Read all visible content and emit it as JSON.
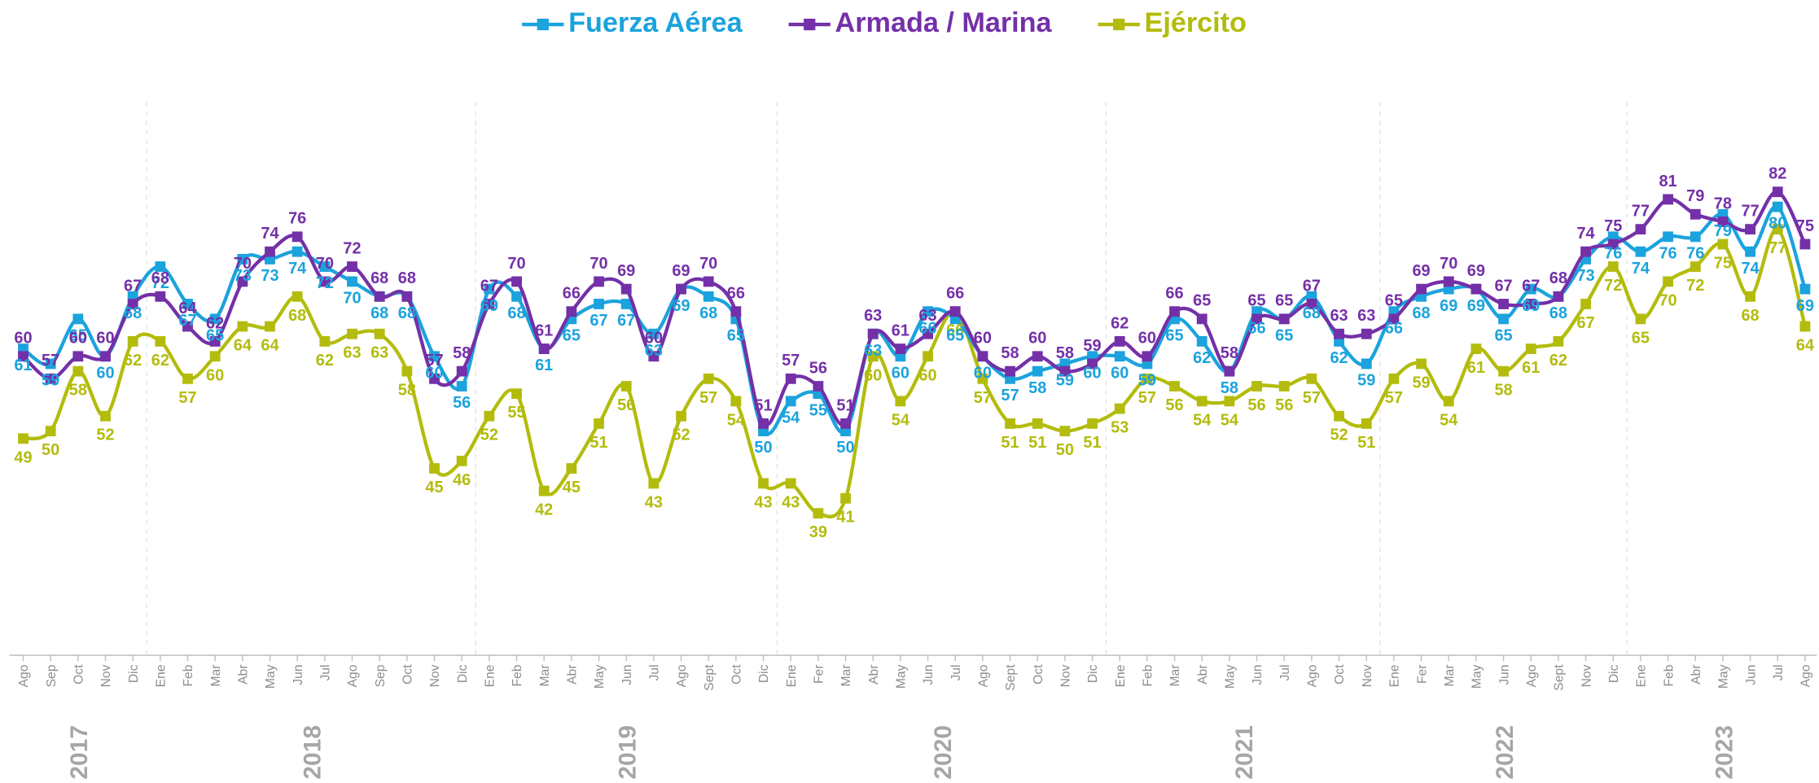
{
  "chart_data": {
    "type": "line",
    "categories": [
      "Ago",
      "Sep",
      "Oct",
      "Nov",
      "Dic",
      "Ene",
      "Feb",
      "Mar",
      "Abr",
      "May",
      "Jun",
      "Jul",
      "Ago",
      "Sep",
      "Oct",
      "Nov",
      "Dic",
      "Ene",
      "Feb",
      "Mar",
      "Abr",
      "May",
      "Jun",
      "Jul",
      "Ago",
      "Sept",
      "Oct",
      "Dic",
      "Ene",
      "Fer",
      "Mar",
      "Abr",
      "May",
      "Jun",
      "Jul",
      "Ago",
      "Sept",
      "Oct",
      "Nov",
      "Dic",
      "Ene",
      "Feb",
      "Mar",
      "Abr",
      "May",
      "Jun",
      "Jul",
      "Ago",
      "Oct",
      "Nov",
      "Ene",
      "Fer",
      "Mar",
      "May",
      "Jun",
      "Ago",
      "Sept",
      "Nov",
      "Dic",
      "Ene",
      "Feb",
      "Abr",
      "May",
      "Jun",
      "Jul",
      "Ago"
    ],
    "years": [
      "2017",
      "2018",
      "2019",
      "2020",
      "2021",
      "2022",
      "2023"
    ],
    "series": [
      {
        "name": "Fuerza Aérea",
        "color": "#1ba3dd",
        "values": [
          61,
          59,
          65,
          60,
          68,
          72,
          67,
          65,
          73,
          73,
          74,
          72,
          70,
          68,
          68,
          60,
          56,
          69,
          68,
          61,
          65,
          67,
          67,
          63,
          69,
          68,
          65,
          50,
          54,
          55,
          50,
          63,
          60,
          66,
          65,
          60,
          57,
          58,
          59,
          60,
          60,
          59,
          65,
          62,
          58,
          66,
          65,
          68,
          62,
          59,
          66,
          68,
          69,
          69,
          65,
          69,
          68,
          73,
          76,
          74,
          76,
          76,
          79,
          74,
          80,
          69
        ]
      },
      {
        "name": "Armada / Marina",
        "color": "#7430a8",
        "values": [
          60,
          57,
          60,
          60,
          67,
          68,
          64,
          62,
          70,
          74,
          76,
          70,
          72,
          68,
          68,
          57,
          58,
          67,
          70,
          61,
          66,
          70,
          69,
          60,
          69,
          70,
          66,
          51,
          57,
          56,
          51,
          63,
          61,
          63,
          66,
          60,
          58,
          60,
          58,
          59,
          62,
          60,
          66,
          65,
          58,
          65,
          65,
          67,
          63,
          63,
          65,
          69,
          70,
          69,
          67,
          67,
          68,
          74,
          75,
          77,
          81,
          79,
          78,
          77,
          82,
          75
        ]
      },
      {
        "name": "Ejército",
        "color": "#b3bc0c",
        "values": [
          49,
          50,
          58,
          52,
          62,
          62,
          57,
          60,
          64,
          64,
          68,
          62,
          63,
          63,
          58,
          45,
          46,
          52,
          55,
          42,
          45,
          51,
          56,
          43,
          52,
          57,
          54,
          43,
          43,
          39,
          41,
          60,
          54,
          60,
          66,
          57,
          51,
          51,
          50,
          51,
          53,
          57,
          56,
          54,
          54,
          56,
          56,
          57,
          52,
          51,
          57,
          59,
          54,
          61,
          58,
          61,
          62,
          67,
          72,
          65,
          70,
          72,
          75,
          68,
          77,
          64
        ]
      }
    ],
    "ylim": [
      20,
      94
    ]
  }
}
